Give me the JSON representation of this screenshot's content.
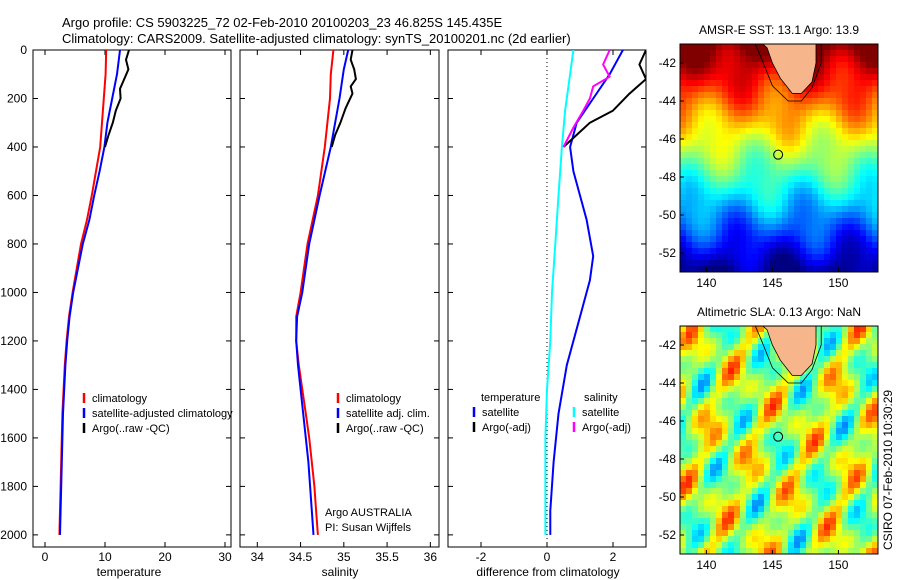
{
  "header": {
    "line1": "Argo profile: CS 5903225_72 02-Feb-2010 20100203_23 46.825S 145.435E",
    "line2": "Climatology: CARS2009. Satellite-adjusted climatology: synTS_20100201.nc (2d earlier)"
  },
  "side_label": "CSIRO 07-Feb-2010 10:30:29",
  "colors": {
    "climatology": "#ff0000",
    "satellite": "#0000ff",
    "argo": "#000000",
    "satellite_salinity": "#00ffff",
    "argo_salinity": "#ff00ff"
  },
  "chart_data": [
    {
      "type": "line",
      "panel": "temperature",
      "xlabel": "temperature",
      "ylabel": "",
      "xlim": [
        -2,
        31
      ],
      "ylim": [
        2050,
        0
      ],
      "xticks": [
        0,
        10,
        20,
        30
      ],
      "yticks": [
        0,
        200,
        400,
        600,
        800,
        1000,
        1200,
        1400,
        1600,
        1800,
        2000
      ],
      "legend": [
        "climatology",
        "satellite-adjusted climatology",
        "Argo(..raw -QC)"
      ],
      "series": [
        {
          "name": "climatology",
          "color": "#ff0000",
          "points": [
            [
              10.2,
              0
            ],
            [
              10.1,
              100
            ],
            [
              9.8,
              200
            ],
            [
              9.5,
              300
            ],
            [
              9.2,
              400
            ],
            [
              8.5,
              500
            ],
            [
              7.8,
              600
            ],
            [
              7,
              700
            ],
            [
              6,
              800
            ],
            [
              5.3,
              900
            ],
            [
              4.6,
              1000
            ],
            [
              4,
              1100
            ],
            [
              3.6,
              1200
            ],
            [
              3.3,
              1300
            ],
            [
              3.1,
              1400
            ],
            [
              2.9,
              1500
            ],
            [
              2.8,
              1600
            ],
            [
              2.7,
              1700
            ],
            [
              2.6,
              1800
            ],
            [
              2.5,
              1900
            ],
            [
              2.4,
              2000
            ]
          ]
        },
        {
          "name": "satellite-adjusted climatology",
          "color": "#0000ff",
          "points": [
            [
              12.5,
              0
            ],
            [
              12,
              100
            ],
            [
              11.2,
              200
            ],
            [
              10.4,
              300
            ],
            [
              9.9,
              400
            ],
            [
              9.1,
              500
            ],
            [
              8.2,
              600
            ],
            [
              7.4,
              700
            ],
            [
              6.3,
              800
            ],
            [
              5.5,
              900
            ],
            [
              4.7,
              1000
            ],
            [
              4.1,
              1100
            ],
            [
              3.7,
              1200
            ],
            [
              3.4,
              1300
            ],
            [
              3.2,
              1400
            ],
            [
              3,
              1500
            ],
            [
              2.9,
              1600
            ],
            [
              2.8,
              1700
            ],
            [
              2.7,
              1800
            ],
            [
              2.6,
              1900
            ],
            [
              2.5,
              2000
            ]
          ]
        },
        {
          "name": "Argo(..raw -QC)",
          "color": "#000000",
          "points": [
            [
              14,
              0
            ],
            [
              13.5,
              40
            ],
            [
              13.9,
              80
            ],
            [
              13.2,
              120
            ],
            [
              12.5,
              160
            ],
            [
              12.6,
              200
            ],
            [
              11.8,
              250
            ],
            [
              11.3,
              300
            ],
            [
              10.6,
              350
            ],
            [
              10,
              400
            ]
          ]
        }
      ]
    },
    {
      "type": "line",
      "panel": "salinity",
      "xlabel": "salinity",
      "ylabel": "",
      "xlim": [
        33.8,
        36.1
      ],
      "ylim": [
        2050,
        0
      ],
      "xticks": [
        34,
        34.5,
        35,
        35.5,
        36
      ],
      "legend": [
        "climatology",
        "satellite adj. clim.",
        "Argo(..raw -QC)"
      ],
      "annotation": [
        "Argo AUSTRALIA",
        "PI: Susan Wijffels"
      ],
      "series": [
        {
          "name": "climatology",
          "color": "#ff0000",
          "points": [
            [
              34.88,
              0
            ],
            [
              34.85,
              100
            ],
            [
              34.84,
              200
            ],
            [
              34.78,
              400
            ],
            [
              34.7,
              600
            ],
            [
              34.58,
              800
            ],
            [
              34.5,
              1000
            ],
            [
              34.45,
              1100
            ],
            [
              34.45,
              1200
            ],
            [
              34.48,
              1300
            ],
            [
              34.52,
              1400
            ],
            [
              34.56,
              1500
            ],
            [
              34.6,
              1600
            ],
            [
              34.63,
              1700
            ],
            [
              34.66,
              1800
            ],
            [
              34.68,
              1900
            ],
            [
              34.7,
              2000
            ]
          ]
        },
        {
          "name": "satellite adj. clim.",
          "color": "#0000ff",
          "points": [
            [
              35.05,
              0
            ],
            [
              35.0,
              80
            ],
            [
              34.95,
              200
            ],
            [
              34.85,
              400
            ],
            [
              34.72,
              600
            ],
            [
              34.6,
              800
            ],
            [
              34.52,
              1000
            ],
            [
              34.46,
              1100
            ],
            [
              34.45,
              1200
            ],
            [
              34.47,
              1300
            ],
            [
              34.5,
              1400
            ],
            [
              34.53,
              1500
            ],
            [
              34.56,
              1600
            ],
            [
              34.59,
              1700
            ],
            [
              34.61,
              1800
            ],
            [
              34.63,
              1900
            ],
            [
              34.65,
              2000
            ]
          ]
        },
        {
          "name": "Argo(..raw -QC)",
          "color": "#000000",
          "points": [
            [
              35.1,
              0
            ],
            [
              35.08,
              40
            ],
            [
              35.12,
              80
            ],
            [
              35.14,
              120
            ],
            [
              35.08,
              150
            ],
            [
              35.1,
              180
            ],
            [
              35.02,
              240
            ],
            [
              34.96,
              300
            ],
            [
              34.9,
              350
            ],
            [
              34.86,
              400
            ]
          ]
        }
      ]
    },
    {
      "type": "line",
      "panel": "difference",
      "xlabel": "difference from climatology",
      "ylabel": "",
      "xlim": [
        -3,
        3
      ],
      "ylim": [
        2050,
        0
      ],
      "xticks": [
        -2,
        0,
        2
      ],
      "legend_temperature_title": "temperature",
      "legend_salinity_title": "salinity",
      "legend": [
        "satellite",
        "Argo(-adj)",
        "satellite",
        "Argo(-adj)"
      ],
      "series": [
        {
          "name": "temperature satellite",
          "color": "#0000ff",
          "points": [
            [
              2.3,
              0
            ],
            [
              1.9,
              100
            ],
            [
              1.4,
              200
            ],
            [
              0.9,
              300
            ],
            [
              0.7,
              400
            ],
            [
              0.8,
              500
            ],
            [
              1,
              600
            ],
            [
              1.2,
              700
            ],
            [
              1.4,
              850
            ],
            [
              1.3,
              950
            ],
            [
              1.0,
              1100
            ],
            [
              0.6,
              1300
            ],
            [
              0.35,
              1500
            ],
            [
              0.2,
              1700
            ],
            [
              0.1,
              1900
            ],
            [
              0.1,
              2000
            ]
          ]
        },
        {
          "name": "temperature Argo(-adj)",
          "color": "#000000",
          "points": [
            [
              3,
              0
            ],
            [
              2.8,
              60
            ],
            [
              3,
              120
            ],
            [
              2.5,
              180
            ],
            [
              2,
              250
            ],
            [
              1.3,
              300
            ],
            [
              0.9,
              350
            ],
            [
              0.5,
              400
            ]
          ]
        },
        {
          "name": "salinity satellite",
          "color": "#00ffff",
          "points": [
            [
              0.8,
              0
            ],
            [
              0.7,
              100
            ],
            [
              0.55,
              250
            ],
            [
              0.45,
              400
            ],
            [
              0.35,
              600
            ],
            [
              0.25,
              800
            ],
            [
              0.15,
              1000
            ],
            [
              0.1,
              1200
            ],
            [
              0,
              1400
            ],
            [
              -0.05,
              1600
            ],
            [
              -0.05,
              1800
            ],
            [
              -0.05,
              2000
            ]
          ]
        },
        {
          "name": "salinity Argo(-adj)",
          "color": "#ff00ff",
          "points": [
            [
              1.9,
              0
            ],
            [
              1.7,
              60
            ],
            [
              1.9,
              110
            ],
            [
              1.4,
              150
            ],
            [
              1.3,
              200
            ],
            [
              1.1,
              250
            ],
            [
              0.8,
              320
            ],
            [
              0.5,
              400
            ]
          ]
        }
      ]
    },
    {
      "type": "heatmap",
      "panel": "sst_map",
      "title": "AMSR-E SST: 13.1 Argo: 13.9",
      "xlim": [
        138,
        153
      ],
      "ylim": [
        -53,
        -41
      ],
      "xticks": [
        140,
        145,
        150
      ],
      "yticks": [
        -42,
        -44,
        -46,
        -48,
        -50,
        -52
      ],
      "marker": {
        "lon": 145.435,
        "lat": -46.825
      }
    },
    {
      "type": "heatmap",
      "panel": "sla_map",
      "title": "Altimetric SLA: 0.13 Argo: NaN",
      "xlim": [
        138,
        153
      ],
      "ylim": [
        -53,
        -41
      ],
      "xticks": [
        140,
        145,
        150
      ],
      "yticks": [
        -42,
        -44,
        -46,
        -48,
        -50,
        -52
      ],
      "marker": {
        "lon": 145.435,
        "lat": -46.825
      }
    }
  ]
}
